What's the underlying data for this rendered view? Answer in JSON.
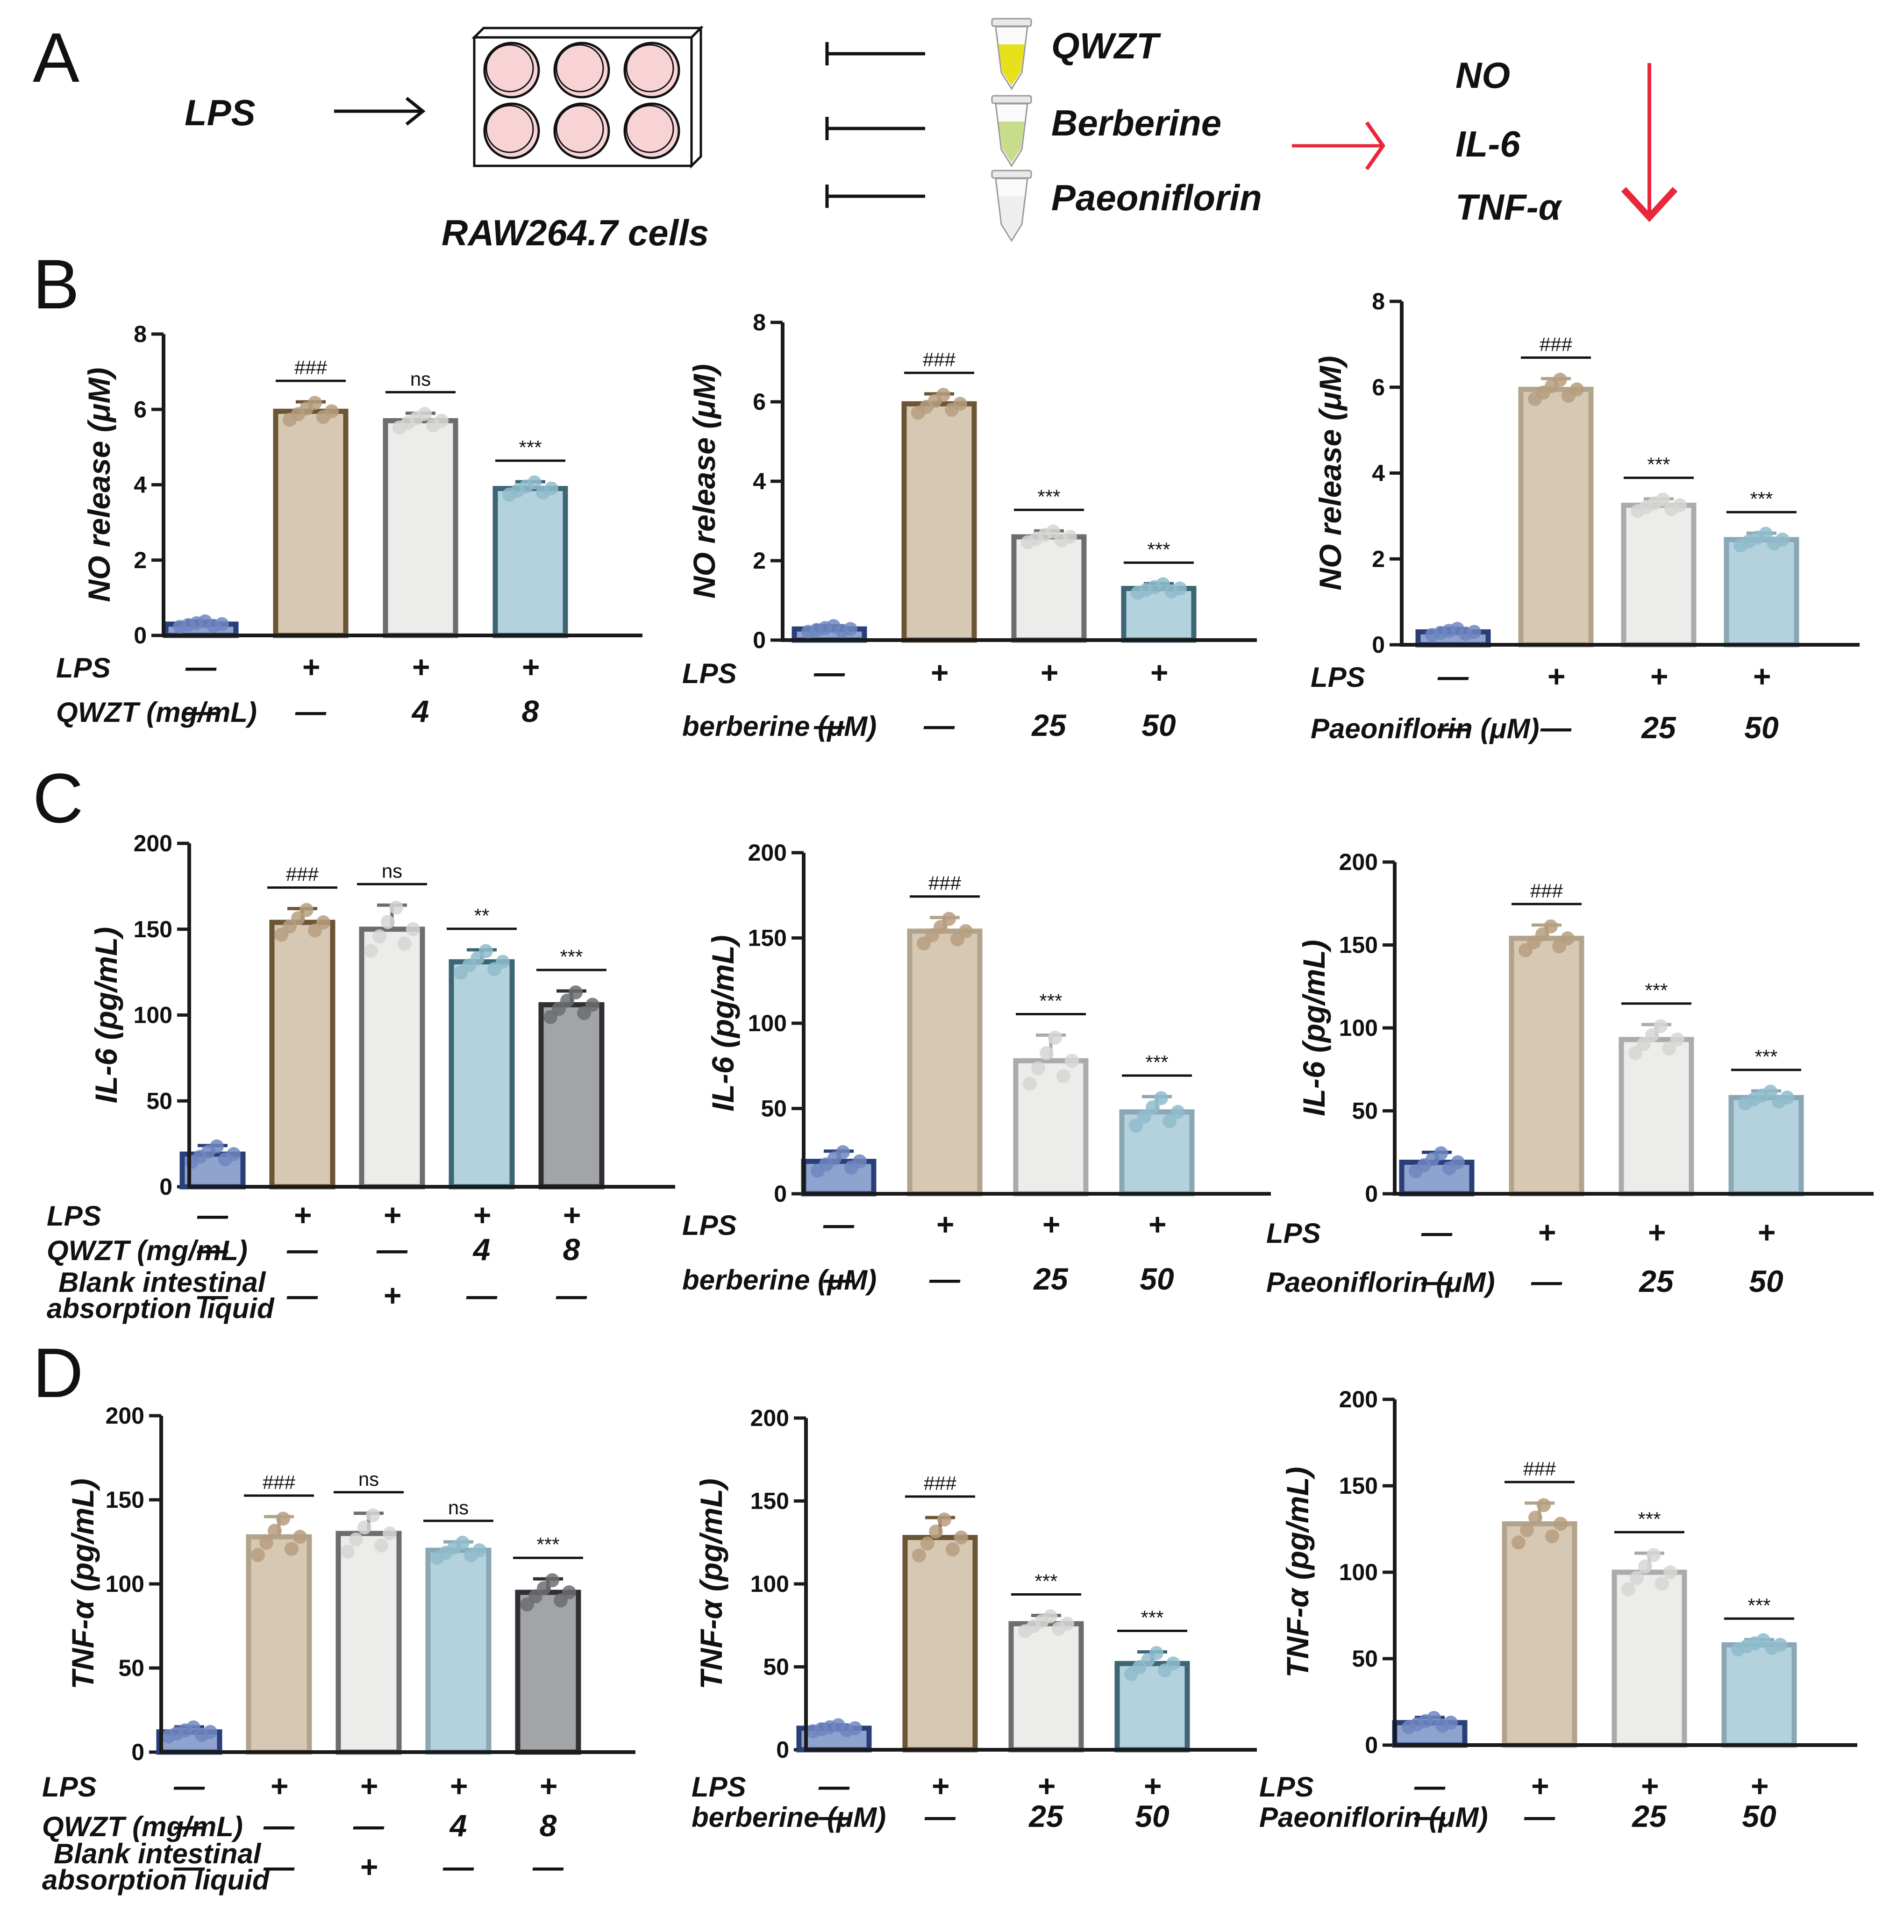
{
  "panels": [
    "A",
    "B",
    "C",
    "D"
  ],
  "schematic": {
    "stimulus": "LPS",
    "cells": "RAW264.7 cells",
    "treatments": [
      "QWZT",
      "Berberine",
      "Paeoniflorin"
    ],
    "outputs": [
      "NO",
      "IL-6",
      "TNF-α"
    ],
    "colors": {
      "arrow_red": "#e8273a",
      "well_fill": "#f7d3d6",
      "tube_qwzt": "#e7e11c",
      "tube_berberine": "#c8dd8b",
      "tube_paeoniflorin": "#eeeeee"
    }
  },
  "colors": {
    "control_fill": "#8fa3cf",
    "control_edge": "#2a3f7a",
    "lps_fill": "#d7c8b4",
    "lps_edge_dark": "#6b5534",
    "lps_edge_light": "#b2a48c",
    "mid_fill": "#ececea",
    "mid_edge_dark": "#6d6d6d",
    "mid_edge_light": "#ababab",
    "teal_fill": "#b3d2de",
    "teal_edge_dark": "#3d6574",
    "teal_edge_light": "#8aa7b4",
    "gray_fill": "#a3a4a8",
    "gray_edge": "#2f3033",
    "dot_control": "#6f86bf",
    "dot_lps": "#b69e7f",
    "dot_mid": "#d6d6d4",
    "dot_teal": "#8fbccd",
    "dot_gray": "#6c6d70"
  },
  "chart_data": [
    {
      "id": "B1",
      "type": "bar",
      "ylabel": "NO release (μM)",
      "ylim": [
        0,
        8
      ],
      "ticks": [
        0,
        2,
        4,
        6,
        8
      ],
      "categories": [
        "Control",
        "LPS",
        "LPS+QWZT 4",
        "LPS+QWZT 8"
      ],
      "values": [
        0.3,
        5.95,
        5.7,
        3.9
      ],
      "errors": [
        0.08,
        0.25,
        0.2,
        0.18
      ],
      "significance": [
        "",
        "###",
        "ns",
        "***"
      ],
      "rows": [
        {
          "label": "LPS",
          "values": [
            "—",
            "+",
            "+",
            "+"
          ]
        },
        {
          "label": "QWZT (mg/mL)",
          "values": [
            "—",
            "—",
            "4",
            "8"
          ]
        }
      ]
    },
    {
      "id": "B2",
      "type": "bar",
      "ylabel": "NO release (μM)",
      "ylim": [
        0,
        8
      ],
      "ticks": [
        0,
        2,
        4,
        6,
        8
      ],
      "categories": [
        "Control",
        "LPS",
        "LPS+berberine 25",
        "LPS+berberine 50"
      ],
      "values": [
        0.28,
        5.95,
        2.6,
        1.3
      ],
      "errors": [
        0.08,
        0.25,
        0.15,
        0.12
      ],
      "significance": [
        "",
        "###",
        "***",
        "***"
      ],
      "rows": [
        {
          "label": "LPS",
          "values": [
            "—",
            "+",
            "+",
            "+"
          ]
        },
        {
          "label": "berberine (μM)",
          "values": [
            "—",
            "—",
            "25",
            "50"
          ]
        }
      ]
    },
    {
      "id": "B3",
      "type": "bar",
      "ylabel": "NO release (μM)",
      "ylim": [
        0,
        8
      ],
      "ticks": [
        0,
        2,
        4,
        6,
        8
      ],
      "categories": [
        "Control",
        "LPS",
        "LPS+Paeoniflorin 25",
        "LPS+Paeoniflorin 50"
      ],
      "values": [
        0.3,
        5.95,
        3.25,
        2.45
      ],
      "errors": [
        0.08,
        0.25,
        0.15,
        0.15
      ],
      "significance": [
        "",
        "###",
        "***",
        "***"
      ],
      "rows": [
        {
          "label": "LPS",
          "values": [
            "—",
            "+",
            "+",
            "+"
          ]
        },
        {
          "label": "Paeoniflorin (μM)",
          "values": [
            "—",
            "—",
            "25",
            "50"
          ]
        }
      ]
    },
    {
      "id": "C1",
      "type": "bar",
      "ylabel": "IL-6 (pg/mL)",
      "ylim": [
        0,
        200
      ],
      "ticks": [
        0,
        50,
        100,
        150,
        200
      ],
      "categories": [
        "Control",
        "LPS",
        "LPS+Blank",
        "LPS+QWZT 4",
        "LPS+QWZT 8"
      ],
      "values": [
        19,
        154,
        150,
        131,
        106
      ],
      "errors": [
        5,
        8,
        14,
        7,
        8
      ],
      "significance": [
        "",
        "###",
        "ns",
        "**",
        "***"
      ],
      "rows": [
        {
          "label": "LPS",
          "values": [
            "—",
            "+",
            "+",
            "+",
            "+"
          ]
        },
        {
          "label": "QWZT (mg/mL)",
          "values": [
            "—",
            "—",
            "—",
            "4",
            "8"
          ]
        },
        {
          "label": "Blank intestinal absorption liquid",
          "values": [
            "—",
            "—",
            "+",
            "—",
            "—"
          ]
        }
      ]
    },
    {
      "id": "C2",
      "type": "bar",
      "ylabel": "IL-6 (pg/mL)",
      "ylim": [
        0,
        200
      ],
      "ticks": [
        0,
        50,
        100,
        150,
        200
      ],
      "categories": [
        "Control",
        "LPS",
        "LPS+berberine 25",
        "LPS+berberine 50"
      ],
      "values": [
        19,
        154,
        78,
        48
      ],
      "errors": [
        6,
        8,
        15,
        9
      ],
      "significance": [
        "",
        "###",
        "***",
        "***"
      ],
      "rows": [
        {
          "label": "LPS",
          "values": [
            "—",
            "+",
            "+",
            "+"
          ]
        },
        {
          "label": "berberine (μM)",
          "values": [
            "—",
            "—",
            "25",
            "50"
          ]
        }
      ]
    },
    {
      "id": "C3",
      "type": "bar",
      "ylabel": "IL-6 (pg/mL)",
      "ylim": [
        0,
        200
      ],
      "ticks": [
        0,
        50,
        100,
        150,
        200
      ],
      "categories": [
        "Control",
        "LPS",
        "LPS+Paeoniflorin 25",
        "LPS+Paeoniflorin 50"
      ],
      "values": [
        19,
        154,
        93,
        58
      ],
      "errors": [
        6,
        8,
        9,
        4
      ],
      "significance": [
        "",
        "###",
        "***",
        "***"
      ],
      "rows": [
        {
          "label": "LPS",
          "values": [
            "—",
            "+",
            "+",
            "+"
          ]
        },
        {
          "label": "Paeoniflorin (μM)",
          "values": [
            "—",
            "—",
            "25",
            "50"
          ]
        }
      ]
    },
    {
      "id": "D1",
      "type": "bar",
      "ylabel": "TNF-α (pg/mL)",
      "ylim": [
        0,
        200
      ],
      "ticks": [
        0,
        50,
        100,
        150,
        200
      ],
      "categories": [
        "Control",
        "LPS",
        "LPS+Blank",
        "LPS+QWZT 4",
        "LPS+QWZT 8"
      ],
      "values": [
        12,
        128,
        130,
        120,
        95
      ],
      "errors": [
        3,
        12,
        12,
        5,
        8
      ],
      "significance": [
        "",
        "###",
        "ns",
        "ns",
        "***"
      ],
      "rows": [
        {
          "label": "LPS",
          "values": [
            "—",
            "+",
            "+",
            "+",
            "+"
          ]
        },
        {
          "label": "QWZT (mg/mL)",
          "values": [
            "—",
            "—",
            "—",
            "4",
            "8"
          ]
        },
        {
          "label": "Blank intestinal absorption liquid",
          "values": [
            "—",
            "—",
            "+",
            "—",
            "—"
          ]
        }
      ]
    },
    {
      "id": "D2",
      "type": "bar",
      "ylabel": "TNF-α (pg/mL)",
      "ylim": [
        0,
        200
      ],
      "ticks": [
        0,
        50,
        100,
        150,
        200
      ],
      "categories": [
        "Control",
        "LPS",
        "LPS+berberine 25",
        "LPS+berberine 50"
      ],
      "values": [
        13,
        128,
        76,
        52
      ],
      "errors": [
        2,
        12,
        5,
        7
      ],
      "significance": [
        "",
        "###",
        "***",
        "***"
      ],
      "rows": [
        {
          "label": "LPS",
          "values": [
            "—",
            "+",
            "+",
            "+"
          ]
        },
        {
          "label": "berberine (μM)",
          "values": [
            "—",
            "—",
            "25",
            "50"
          ]
        }
      ]
    },
    {
      "id": "D3",
      "type": "bar",
      "ylabel": "TNF-α (pg/mL)",
      "ylim": [
        0,
        200
      ],
      "ticks": [
        0,
        50,
        100,
        150,
        200
      ],
      "categories": [
        "Control",
        "LPS",
        "LPS+Paeoniflorin 25",
        "LPS+Paeoniflorin 50"
      ],
      "values": [
        13,
        128,
        100,
        58
      ],
      "errors": [
        3,
        12,
        11,
        3
      ],
      "significance": [
        "",
        "###",
        "***",
        "***"
      ],
      "rows": [
        {
          "label": "LPS",
          "values": [
            "—",
            "+",
            "+",
            "+"
          ]
        },
        {
          "label": "Paeoniflorin (μM)",
          "values": [
            "—",
            "—",
            "25",
            "50"
          ]
        }
      ]
    }
  ]
}
